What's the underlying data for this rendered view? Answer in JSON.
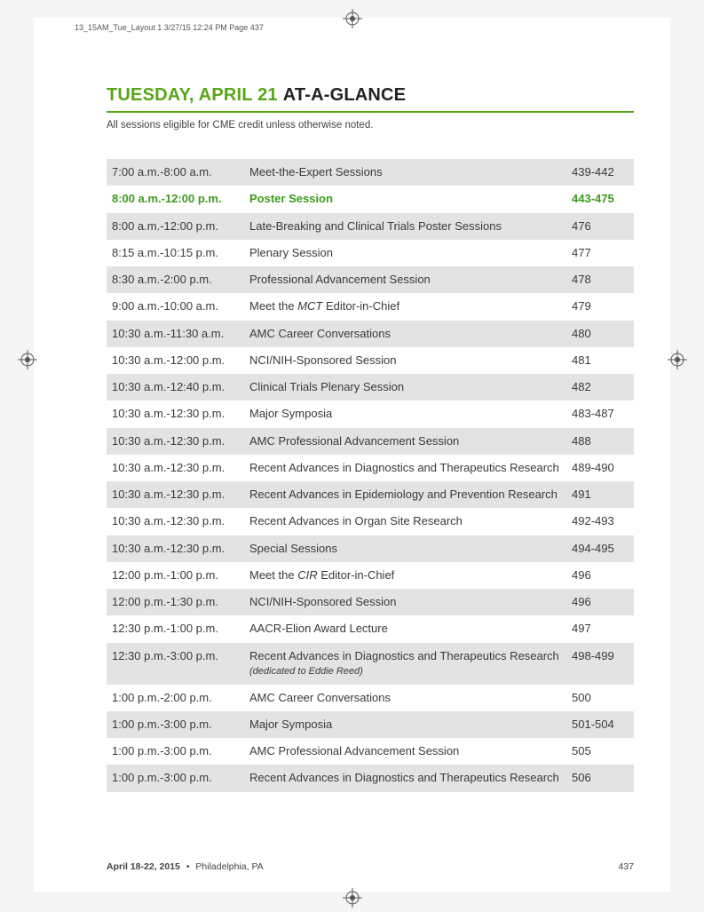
{
  "slug": "13_15AM_Tue_Layout 1  3/27/15  12:24 PM  Page 437",
  "title": {
    "green": "TUESDAY, APRIL 21",
    "black": "AT-A-GLANCE"
  },
  "subtitle": "All sessions eligible for CME credit unless otherwise noted.",
  "accent_color": "#58a618",
  "hl_color": "#3d9b1c",
  "shade_color": "#e3e3e3",
  "rows": [
    {
      "time": "7:00 a.m.-8:00 a.m.",
      "session": "Meet-the-Expert Sessions",
      "page": "439-442",
      "shade": true
    },
    {
      "time": "8:00 a.m.-12:00 p.m.",
      "session": "Poster Session",
      "page": "443-475",
      "hl": true
    },
    {
      "time": "8:00 a.m.-12:00 p.m.",
      "session": "Late-Breaking and Clinical Trials Poster Sessions",
      "page": "476",
      "shade": true
    },
    {
      "time": "8:15 a.m.-10:15 p.m.",
      "session": "Plenary Session",
      "page": "477"
    },
    {
      "time": "8:30 a.m.-2:00 p.m.",
      "session": "Professional Advancement Session",
      "page": "478",
      "shade": true
    },
    {
      "time": "9:00 a.m.-10:00 a.m.",
      "session_html": "Meet the <i>MCT</i> Editor-in-Chief",
      "page": "479"
    },
    {
      "time": "10:30 a.m.-11:30 a.m.",
      "session": "AMC Career Conversations",
      "page": "480",
      "shade": true
    },
    {
      "time": "10:30 a.m.-12:00 p.m.",
      "session": "NCI/NIH-Sponsored Session",
      "page": "481"
    },
    {
      "time": "10:30 a.m.-12:40 p.m.",
      "session": "Clinical Trials Plenary Session",
      "page": "482",
      "shade": true
    },
    {
      "time": "10:30 a.m.-12:30 p.m.",
      "session": "Major Symposia",
      "page": "483-487"
    },
    {
      "time": "10:30 a.m.-12:30 p.m.",
      "session": "AMC Professional Advancement Session",
      "page": "488",
      "shade": true
    },
    {
      "time": "10:30 a.m.-12:30 p.m.",
      "session": "Recent Advances in Diagnostics and Therapeutics Research",
      "page": "489-490"
    },
    {
      "time": "10:30 a.m.-12:30 p.m.",
      "session": "Recent Advances in Epidemiology and Prevention Research",
      "page": "491",
      "shade": true
    },
    {
      "time": "10:30 a.m.-12:30 p.m.",
      "session": "Recent Advances in Organ Site Research",
      "page": "492-493"
    },
    {
      "time": "10:30 a.m.-12:30 p.m.",
      "session": "Special Sessions",
      "page": "494-495",
      "shade": true
    },
    {
      "time": "12:00 p.m.-1:00 p.m.",
      "session_html": "Meet the <i>CIR</i> Editor-in-Chief",
      "page": "496"
    },
    {
      "time": "12:00 p.m.-1:30 p.m.",
      "session": "NCI/NIH-Sponsored Session",
      "page": "496",
      "shade": true
    },
    {
      "time": "12:30 p.m.-1:00 p.m.",
      "session": "AACR-Elion Award Lecture",
      "page": "497"
    },
    {
      "time": "12:30 p.m.-3:00 p.m.",
      "session_html": "Recent Advances in Diagnostics and Therapeutics Research <span class=\"ded\">(dedicated to Eddie Reed)</span>",
      "page": "498-499",
      "shade": true
    },
    {
      "time": "1:00 p.m.-2:00 p.m.",
      "session": "AMC Career Conversations",
      "page": "500"
    },
    {
      "time": "1:00 p.m.-3:00 p.m.",
      "session": "Major Symposia",
      "page": "501-504",
      "shade": true
    },
    {
      "time": "1:00 p.m.-3:00 p.m.",
      "session": "AMC Professional Advancement Session",
      "page": "505"
    },
    {
      "time": "1:00 p.m.-3:00 p.m.",
      "session": "Recent Advances in Diagnostics and Therapeutics Research",
      "page": "506",
      "shade": true
    }
  ],
  "footer": {
    "date_bold": "April 18-22, 2015",
    "location": "Philadelphia, PA",
    "page_no": "437"
  }
}
